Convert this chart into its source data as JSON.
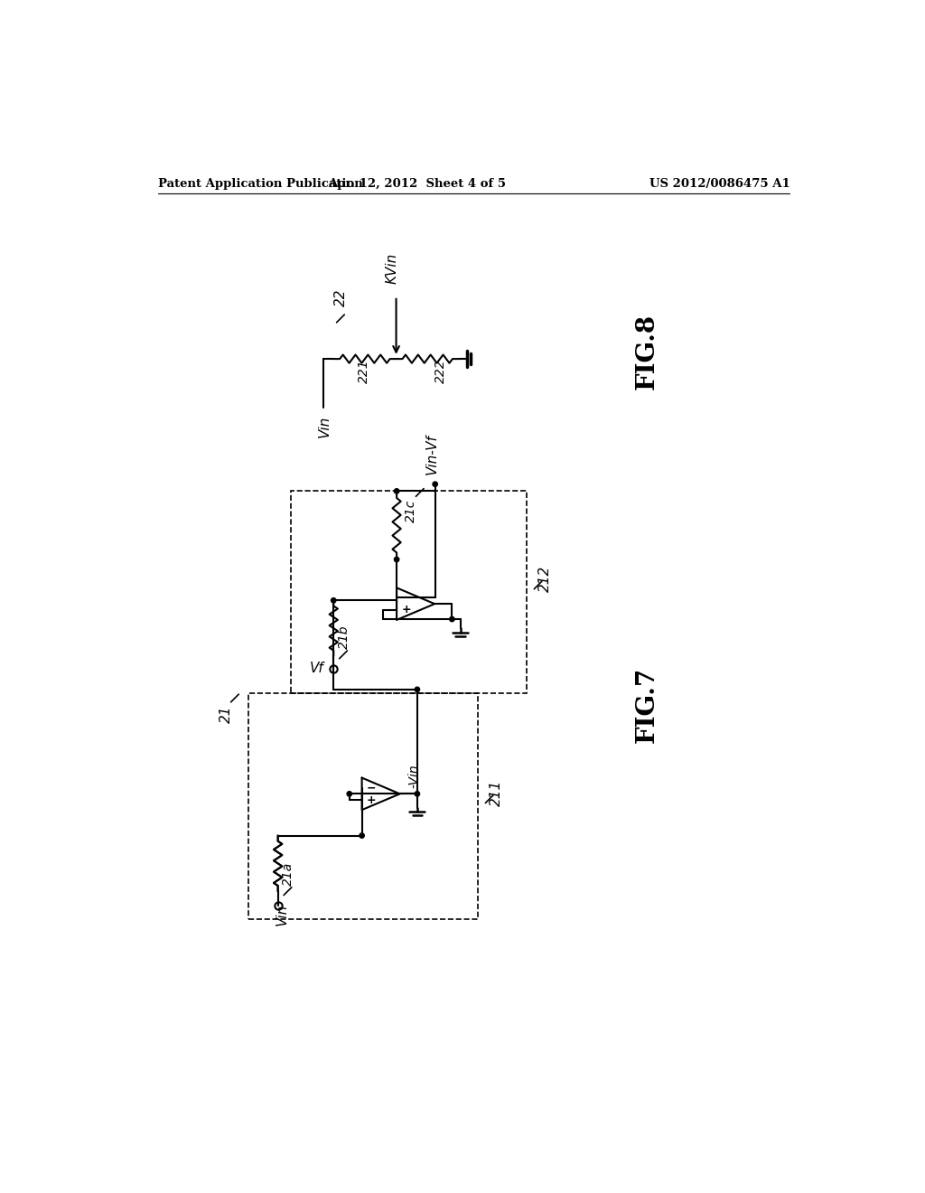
{
  "bg_color": "#ffffff",
  "line_color": "#000000",
  "header_left": "Patent Application Publication",
  "header_mid": "Apr. 12, 2012  Sheet 4 of 5",
  "header_right": "US 2012/0086475 A1",
  "fig7_label": "FIG.7",
  "fig8_label": "FIG.8",
  "label_21": "21",
  "label_211": "211",
  "label_212": "212",
  "label_21a": "21a",
  "label_21b": "21b",
  "label_21c": "21c",
  "label_Vin_bottom": "Vin",
  "label_Vf": "Vf",
  "label_neg_Vin": "-Vin",
  "label_Vin_Vf": "Vin-Vf",
  "label_22": "22",
  "label_221": "221",
  "label_222": "222",
  "label_Vin_fig8": "Vin",
  "label_KVin": "KVin"
}
